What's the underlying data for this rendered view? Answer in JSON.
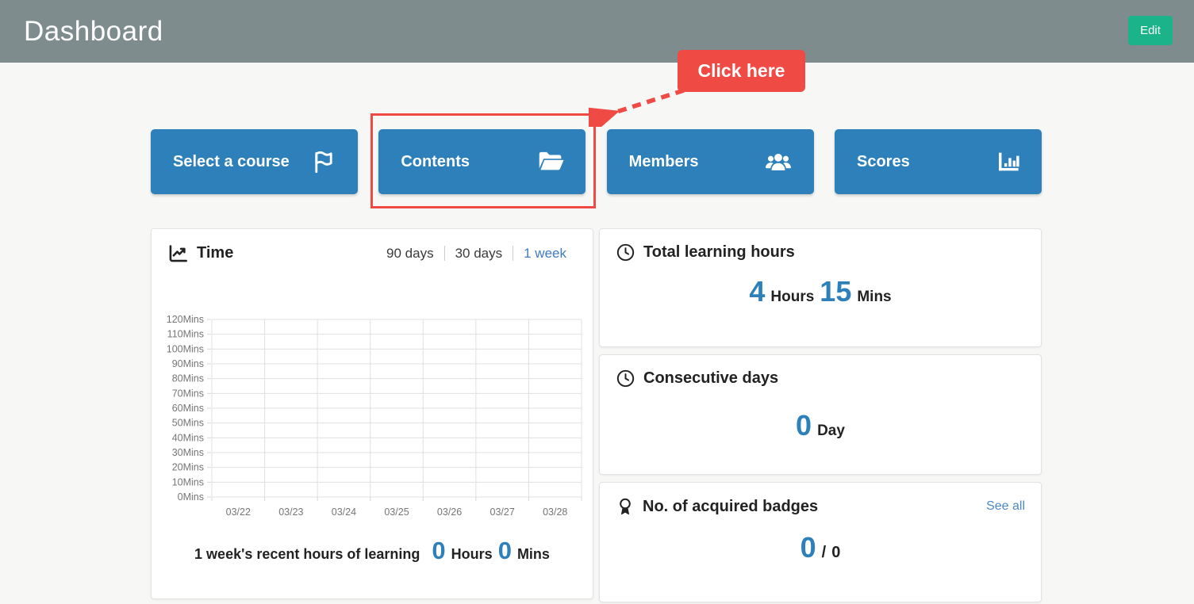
{
  "header": {
    "title": "Dashboard",
    "edit_label": "Edit"
  },
  "callout": {
    "label": "Click here"
  },
  "nav_buttons": [
    {
      "label": "Select a course",
      "icon": "flag-icon"
    },
    {
      "label": "Contents",
      "icon": "folder-open-icon",
      "highlighted": true
    },
    {
      "label": "Members",
      "icon": "users-icon"
    },
    {
      "label": "Scores",
      "icon": "chart-column-icon"
    }
  ],
  "time_panel": {
    "title": "Time",
    "range_tabs": [
      {
        "label": "90 days",
        "active": false
      },
      {
        "label": "30 days",
        "active": false
      },
      {
        "label": "1 week",
        "active": true
      }
    ],
    "summary": {
      "label": "1 week's recent hours of learning",
      "hours_value": "0",
      "hours_unit": "Hours",
      "mins_value": "0",
      "mins_unit": "Mins"
    }
  },
  "chart_data": {
    "type": "line",
    "title": "Time",
    "x": [
      "03/22",
      "03/23",
      "03/24",
      "03/25",
      "03/26",
      "03/27",
      "03/28"
    ],
    "yticks": [
      "0Mins",
      "10Mins",
      "20Mins",
      "30Mins",
      "40Mins",
      "50Mins",
      "60Mins",
      "70Mins",
      "80Mins",
      "90Mins",
      "100Mins",
      "110Mins",
      "120Mins"
    ],
    "ylim": [
      0,
      120
    ],
    "grid": true,
    "legend": "none",
    "series": []
  },
  "cards": {
    "total_learning_hours": {
      "title": "Total learning hours",
      "hours_value": "4",
      "hours_unit": "Hours",
      "mins_value": "15",
      "mins_unit": "Mins"
    },
    "consecutive_days": {
      "title": "Consecutive days",
      "value": "0",
      "unit": "Day"
    },
    "badges": {
      "title": "No. of acquired badges",
      "see_all": "See all",
      "acquired": "0",
      "separator": "/",
      "total": "0"
    }
  },
  "colors": {
    "header_bg": "#7e8c8d",
    "accent_blue": "#2d80ba",
    "annotation_red": "#f04a45",
    "edit_green": "#1bb38a",
    "link_blue": "#4a89c8"
  }
}
